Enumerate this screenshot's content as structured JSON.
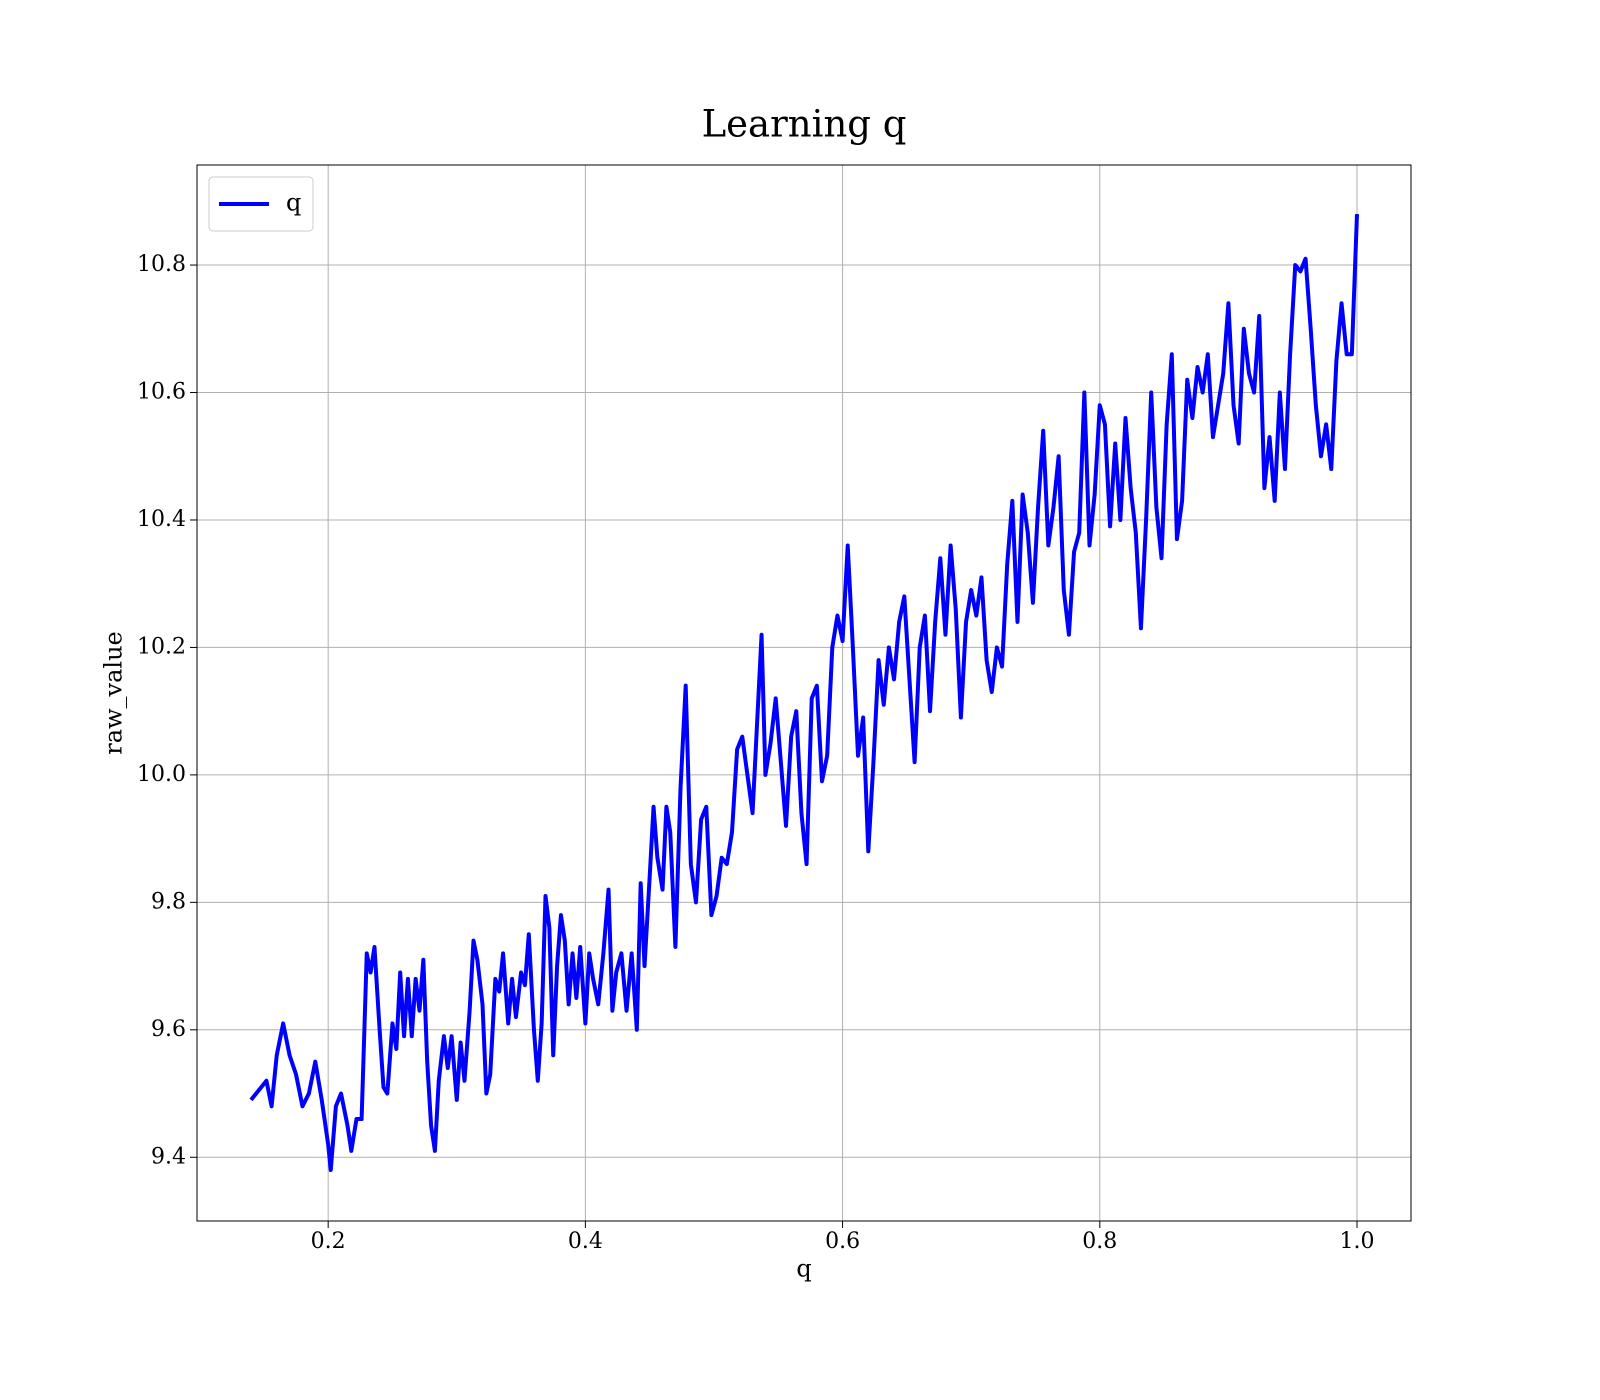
{
  "chart_data": {
    "type": "line",
    "title": "Learning q",
    "x_label": "q",
    "y_label": "raw_value",
    "x": [
      0.14,
      0.152,
      0.156,
      0.16,
      0.165,
      0.17,
      0.175,
      0.18,
      0.185,
      0.19,
      0.195,
      0.2,
      0.202,
      0.206,
      0.21,
      0.215,
      0.218,
      0.222,
      0.226,
      0.23,
      0.233,
      0.236,
      0.24,
      0.243,
      0.246,
      0.25,
      0.253,
      0.256,
      0.259,
      0.262,
      0.265,
      0.268,
      0.271,
      0.274,
      0.277,
      0.28,
      0.283,
      0.286,
      0.29,
      0.293,
      0.296,
      0.3,
      0.303,
      0.306,
      0.31,
      0.313,
      0.316,
      0.32,
      0.323,
      0.326,
      0.33,
      0.333,
      0.336,
      0.34,
      0.343,
      0.346,
      0.35,
      0.353,
      0.356,
      0.36,
      0.363,
      0.366,
      0.369,
      0.372,
      0.375,
      0.378,
      0.381,
      0.384,
      0.387,
      0.39,
      0.393,
      0.396,
      0.4,
      0.403,
      0.406,
      0.41,
      0.414,
      0.418,
      0.421,
      0.424,
      0.428,
      0.432,
      0.436,
      0.44,
      0.443,
      0.446,
      0.45,
      0.453,
      0.456,
      0.46,
      0.463,
      0.466,
      0.47,
      0.474,
      0.478,
      0.482,
      0.486,
      0.49,
      0.494,
      0.498,
      0.502,
      0.506,
      0.51,
      0.514,
      0.518,
      0.522,
      0.526,
      0.53,
      0.534,
      0.537,
      0.54,
      0.544,
      0.548,
      0.552,
      0.556,
      0.56,
      0.564,
      0.568,
      0.572,
      0.576,
      0.58,
      0.584,
      0.588,
      0.592,
      0.596,
      0.6,
      0.604,
      0.608,
      0.612,
      0.616,
      0.62,
      0.624,
      0.628,
      0.632,
      0.636,
      0.64,
      0.644,
      0.648,
      0.652,
      0.656,
      0.66,
      0.664,
      0.668,
      0.672,
      0.676,
      0.68,
      0.684,
      0.688,
      0.692,
      0.696,
      0.7,
      0.704,
      0.708,
      0.712,
      0.716,
      0.72,
      0.724,
      0.728,
      0.732,
      0.736,
      0.74,
      0.744,
      0.748,
      0.752,
      0.756,
      0.76,
      0.764,
      0.768,
      0.772,
      0.776,
      0.78,
      0.784,
      0.788,
      0.792,
      0.796,
      0.8,
      0.804,
      0.808,
      0.812,
      0.816,
      0.82,
      0.824,
      0.828,
      0.832,
      0.836,
      0.84,
      0.844,
      0.848,
      0.852,
      0.856,
      0.86,
      0.864,
      0.868,
      0.872,
      0.876,
      0.88,
      0.884,
      0.888,
      0.892,
      0.896,
      0.9,
      0.904,
      0.908,
      0.912,
      0.916,
      0.92,
      0.924,
      0.928,
      0.932,
      0.936,
      0.94,
      0.944,
      0.948,
      0.952,
      0.956,
      0.96,
      0.964,
      0.968,
      0.972,
      0.976,
      0.98,
      0.984,
      0.988,
      0.992,
      0.996,
      1.0
    ],
    "series": [
      {
        "name": "q",
        "color": "#0000ff",
        "values": [
          9.49,
          9.52,
          9.48,
          9.56,
          9.61,
          9.56,
          9.53,
          9.48,
          9.5,
          9.55,
          9.49,
          9.42,
          9.38,
          9.48,
          9.5,
          9.45,
          9.41,
          9.46,
          9.46,
          9.72,
          9.69,
          9.73,
          9.6,
          9.51,
          9.5,
          9.61,
          9.57,
          9.69,
          9.59,
          9.68,
          9.59,
          9.68,
          9.63,
          9.71,
          9.55,
          9.45,
          9.41,
          9.52,
          9.59,
          9.54,
          9.59,
          9.49,
          9.58,
          9.52,
          9.63,
          9.74,
          9.71,
          9.64,
          9.5,
          9.53,
          9.68,
          9.66,
          9.72,
          9.61,
          9.68,
          9.62,
          9.69,
          9.67,
          9.75,
          9.6,
          9.52,
          9.61,
          9.81,
          9.76,
          9.56,
          9.7,
          9.78,
          9.74,
          9.64,
          9.72,
          9.65,
          9.73,
          9.61,
          9.72,
          9.68,
          9.64,
          9.72,
          9.82,
          9.63,
          9.69,
          9.72,
          9.63,
          9.72,
          9.6,
          9.83,
          9.7,
          9.84,
          9.95,
          9.87,
          9.82,
          9.95,
          9.91,
          9.73,
          9.98,
          10.14,
          9.86,
          9.8,
          9.93,
          9.95,
          9.78,
          9.81,
          9.87,
          9.86,
          9.91,
          10.04,
          10.06,
          10.0,
          9.94,
          10.1,
          10.22,
          10.0,
          10.05,
          10.12,
          10.02,
          9.92,
          10.06,
          10.1,
          9.94,
          9.86,
          10.12,
          10.14,
          9.99,
          10.03,
          10.2,
          10.25,
          10.21,
          10.36,
          10.2,
          10.03,
          10.09,
          9.88,
          10.02,
          10.18,
          10.11,
          10.2,
          10.15,
          10.24,
          10.28,
          10.15,
          10.02,
          10.2,
          10.25,
          10.1,
          10.24,
          10.34,
          10.22,
          10.36,
          10.26,
          10.09,
          10.24,
          10.29,
          10.25,
          10.31,
          10.18,
          10.13,
          10.2,
          10.17,
          10.33,
          10.43,
          10.24,
          10.44,
          10.38,
          10.27,
          10.42,
          10.54,
          10.36,
          10.42,
          10.5,
          10.29,
          10.22,
          10.35,
          10.38,
          10.6,
          10.36,
          10.44,
          10.58,
          10.55,
          10.39,
          10.52,
          10.4,
          10.56,
          10.45,
          10.38,
          10.23,
          10.4,
          10.6,
          10.42,
          10.34,
          10.55,
          10.66,
          10.37,
          10.43,
          10.62,
          10.56,
          10.64,
          10.6,
          10.66,
          10.53,
          10.58,
          10.63,
          10.74,
          10.58,
          10.52,
          10.7,
          10.63,
          10.6,
          10.72,
          10.45,
          10.53,
          10.43,
          10.6,
          10.48,
          10.66,
          10.8,
          10.79,
          10.81,
          10.7,
          10.58,
          10.5,
          10.55,
          10.48,
          10.65,
          10.74,
          10.66,
          10.66,
          10.88
        ]
      }
    ],
    "xlim": [
      0.098,
      1.042
    ],
    "ylim": [
      9.3,
      10.957
    ],
    "xticks": [
      0.2,
      0.4,
      0.6,
      0.8,
      {
        "value": 1,
        "label": "1.0"
      }
    ],
    "yticks": [
      9.4,
      9.6,
      9.8,
      {
        "value": 10,
        "label": "10.0"
      },
      10.2,
      10.4,
      10.6,
      10.8
    ],
    "grid": true,
    "legend": "upper left"
  }
}
